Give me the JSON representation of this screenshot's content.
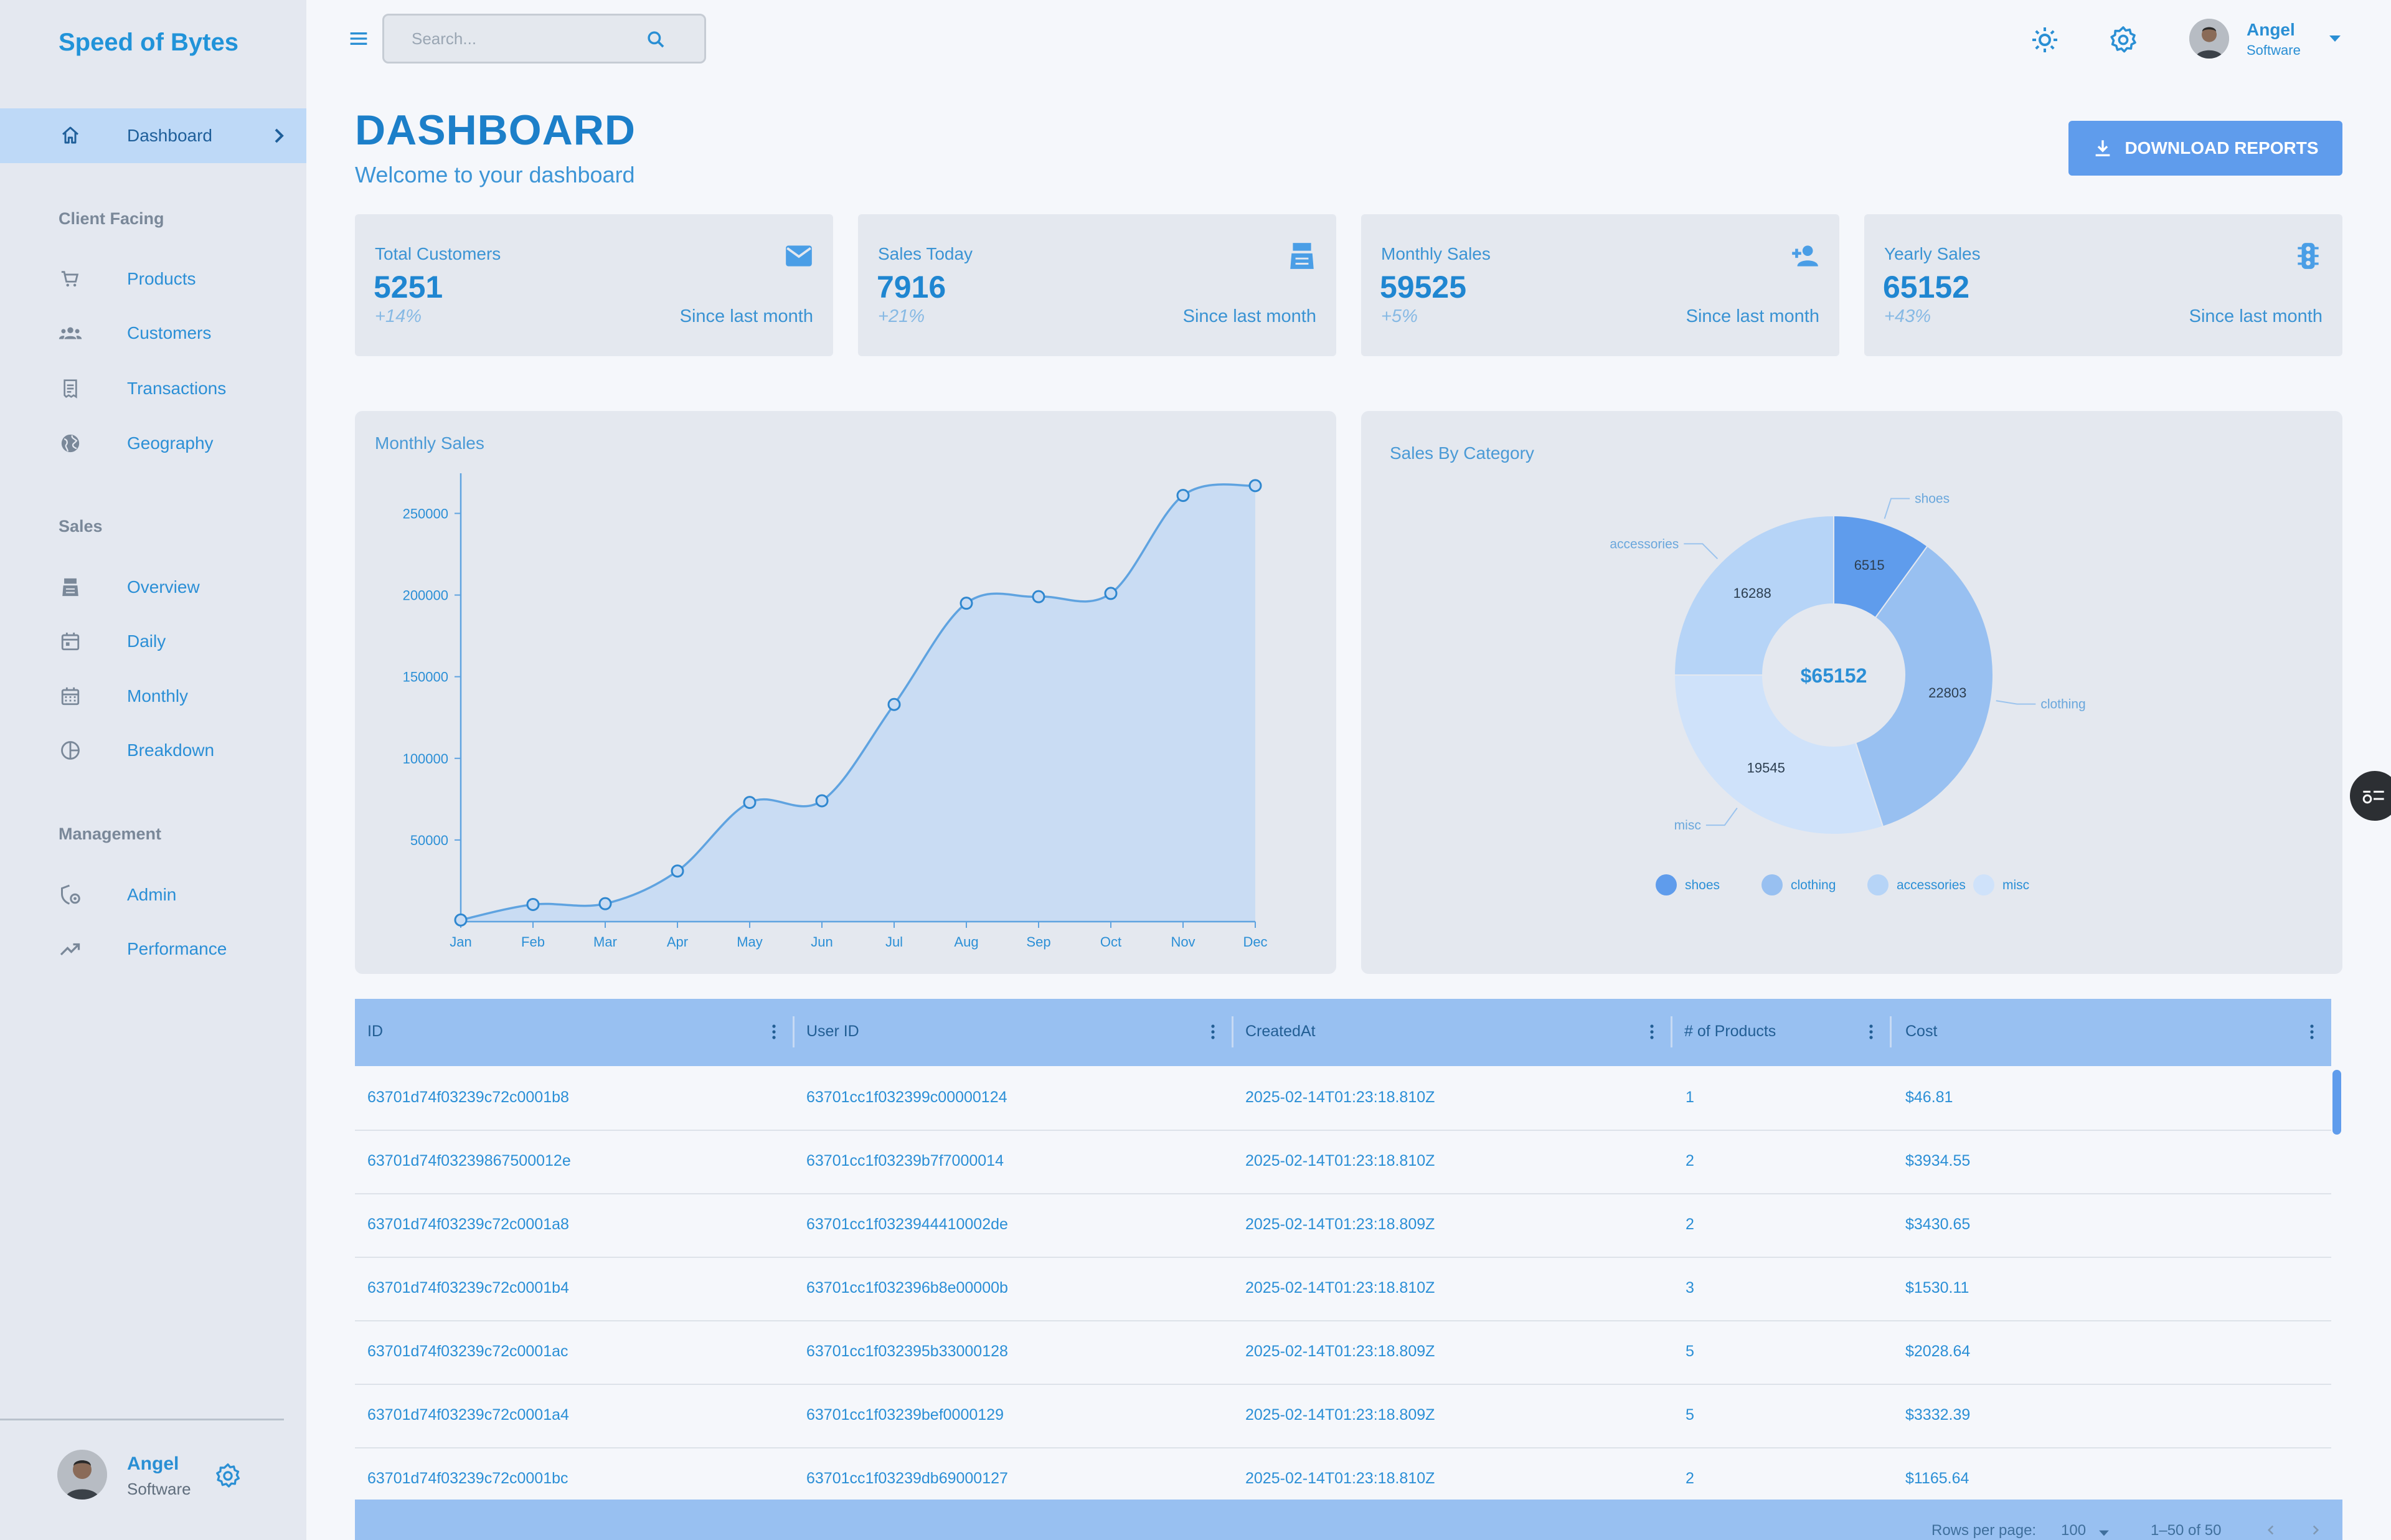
{
  "brand": "Speed of Bytes",
  "nav": {
    "active": "Dashboard",
    "sections": [
      {
        "title": "Client Facing",
        "items": [
          "Products",
          "Customers",
          "Transactions",
          "Geography"
        ]
      },
      {
        "title": "Sales",
        "items": [
          "Overview",
          "Daily",
          "Monthly",
          "Breakdown"
        ]
      },
      {
        "title": "Management",
        "items": [
          "Admin",
          "Performance"
        ]
      }
    ]
  },
  "user": {
    "name": "Angel",
    "role": "Software"
  },
  "search": {
    "placeholder": "Search..."
  },
  "header": {
    "title": "DASHBOARD",
    "subtitle": "Welcome to your dashboard",
    "download_label": "DOWNLOAD REPORTS"
  },
  "stats": [
    {
      "title": "Total Customers",
      "value": "5251",
      "delta": "+14%",
      "since": "Since last month",
      "icon": "email-icon"
    },
    {
      "title": "Sales Today",
      "value": "7916",
      "delta": "+21%",
      "since": "Since last month",
      "icon": "point-of-sale-icon"
    },
    {
      "title": "Monthly Sales",
      "value": "59525",
      "delta": "+5%",
      "since": "Since last month",
      "icon": "person-add-icon"
    },
    {
      "title": "Yearly Sales",
      "value": "65152",
      "delta": "+43%",
      "since": "Since last month",
      "icon": "traffic-icon"
    }
  ],
  "chart_data": [
    {
      "type": "area",
      "title": "Monthly Sales",
      "categories": [
        "Jan",
        "Feb",
        "Mar",
        "Apr",
        "May",
        "Jun",
        "Jul",
        "Aug",
        "Sep",
        "Oct",
        "Nov",
        "Dec"
      ],
      "values": [
        1000,
        10500,
        11000,
        31000,
        73000,
        74000,
        133000,
        195000,
        199000,
        201000,
        261000,
        267000
      ],
      "yticks": [
        50000,
        100000,
        150000,
        200000,
        250000
      ],
      "ylim": [
        0,
        270000
      ],
      "color": "#5fa3e0"
    },
    {
      "type": "pie",
      "title": "Sales By Category",
      "center_label": "$65152",
      "slices": [
        {
          "name": "shoes",
          "value": 6515,
          "color": "#5f9cec"
        },
        {
          "name": "clothing",
          "value": 22803,
          "color": "#98c0f1"
        },
        {
          "name": "misc",
          "value": 19545,
          "color": "#cfe2fa"
        },
        {
          "name": "accessories",
          "value": 16288,
          "color": "#b6d4f7"
        }
      ],
      "legend": [
        "shoes",
        "clothing",
        "accessories",
        "misc"
      ],
      "legend_position": "bottom"
    }
  ],
  "table": {
    "columns": [
      "ID",
      "User ID",
      "CreatedAt",
      "# of Products",
      "Cost"
    ],
    "rows": [
      [
        "63701d74f03239c72c0001b8",
        "63701cc1f032399c00000124",
        "2025-02-14T01:23:18.810Z",
        "1",
        "$46.81"
      ],
      [
        "63701d74f03239867500012e",
        "63701cc1f03239b7f7000014",
        "2025-02-14T01:23:18.810Z",
        "2",
        "$3934.55"
      ],
      [
        "63701d74f03239c72c0001a8",
        "63701cc1f0323944410002de",
        "2025-02-14T01:23:18.809Z",
        "2",
        "$3430.65"
      ],
      [
        "63701d74f03239c72c0001b4",
        "63701cc1f032396b8e00000b",
        "2025-02-14T01:23:18.810Z",
        "3",
        "$1530.11"
      ],
      [
        "63701d74f03239c72c0001ac",
        "63701cc1f032395b33000128",
        "2025-02-14T01:23:18.809Z",
        "5",
        "$2028.64"
      ],
      [
        "63701d74f03239c72c0001a4",
        "63701cc1f03239bef0000129",
        "2025-02-14T01:23:18.809Z",
        "5",
        "$3332.39"
      ],
      [
        "63701d74f03239c72c0001bc",
        "63701cc1f03239db69000127",
        "2025-02-14T01:23:18.810Z",
        "2",
        "$1165.64"
      ]
    ],
    "footer": {
      "rows_per_page_label": "Rows per page:",
      "rows_per_page": "100",
      "range": "1–50 of 50"
    }
  },
  "colors": {
    "accent": "#5f9cec",
    "text": "#2b8fd6",
    "panel": "#e4e8ef",
    "sidebar": "#e4e8f0"
  }
}
